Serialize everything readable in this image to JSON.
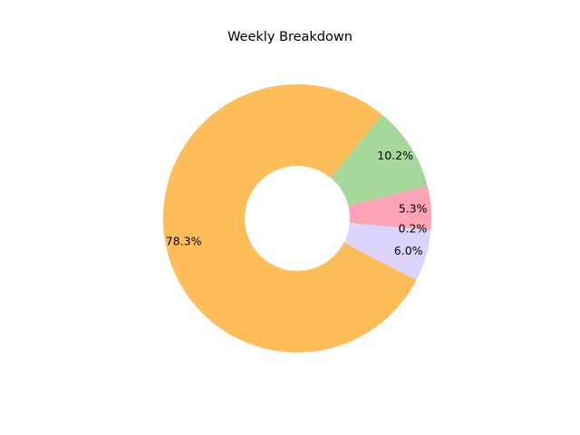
{
  "chart_data": {
    "type": "pie",
    "title": "Weekly Breakdown",
    "donut": true,
    "slices": [
      {
        "value": 10.2,
        "label": "10.2%",
        "color": "#a6d79a"
      },
      {
        "value": 78.3,
        "label": "78.3%",
        "color": "#ffbd59"
      },
      {
        "value": 6.0,
        "label": "6.0%",
        "color": "#dcd3ff"
      },
      {
        "value": 0.2,
        "label": "0.2%",
        "color": "#b9e3f5"
      },
      {
        "value": 5.3,
        "label": "5.3%",
        "color": "#ffa3b6"
      }
    ]
  }
}
